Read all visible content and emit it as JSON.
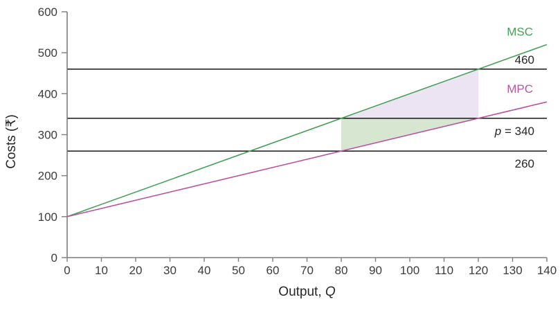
{
  "chart_data": {
    "type": "line",
    "title": "",
    "xlabel": "Output, Q",
    "xlabel_parts": [
      {
        "text": "Output, ",
        "italic": false
      },
      {
        "text": "Q",
        "italic": true
      }
    ],
    "ylabel": "Costs (₹)",
    "xlim": [
      0,
      140
    ],
    "ylim": [
      0,
      600
    ],
    "x_ticks": [
      0,
      10,
      20,
      30,
      40,
      50,
      60,
      70,
      80,
      90,
      100,
      110,
      120,
      130,
      140
    ],
    "y_ticks": [
      0,
      100,
      200,
      300,
      400,
      500,
      600
    ],
    "grid": false,
    "legend_position": "inline-right",
    "series": [
      {
        "name": "msc",
        "label": "MSC",
        "color": "#45a158",
        "x": [
          0,
          140
        ],
        "y": [
          100,
          520
        ]
      },
      {
        "name": "mpc",
        "label": "MPC",
        "color": "#b953a2",
        "x": [
          0,
          140
        ],
        "y": [
          100,
          380
        ]
      }
    ],
    "hlines": [
      {
        "name": "hline-460",
        "value": 460,
        "label": "460",
        "label_parts": [
          {
            "text": "460",
            "italic": false
          }
        ],
        "label_side": "above"
      },
      {
        "name": "hline-price",
        "value": 340,
        "label": "p = 340",
        "label_parts": [
          {
            "text": "p",
            "italic": true
          },
          {
            "text": " = 340",
            "italic": false
          }
        ],
        "label_side": "below"
      },
      {
        "name": "hline-260",
        "value": 260,
        "label": "260",
        "label_parts": [
          {
            "text": "260",
            "italic": false
          }
        ],
        "label_side": "below"
      }
    ],
    "shaded_regions": [
      {
        "name": "shaded-region-msc-above-price",
        "color": "#ece4f2",
        "points": [
          [
            80,
            340
          ],
          [
            120,
            460
          ],
          [
            120,
            340
          ]
        ]
      },
      {
        "name": "shaded-region-price-above-mpc",
        "color": "#d7e6d1",
        "points": [
          [
            80,
            340
          ],
          [
            120,
            340
          ],
          [
            80,
            260
          ]
        ]
      }
    ],
    "colors": {
      "hline": "#262626",
      "axis": "#7d7d7d",
      "tick_label": "#3c3c3c",
      "axis_title": "#262626"
    }
  }
}
